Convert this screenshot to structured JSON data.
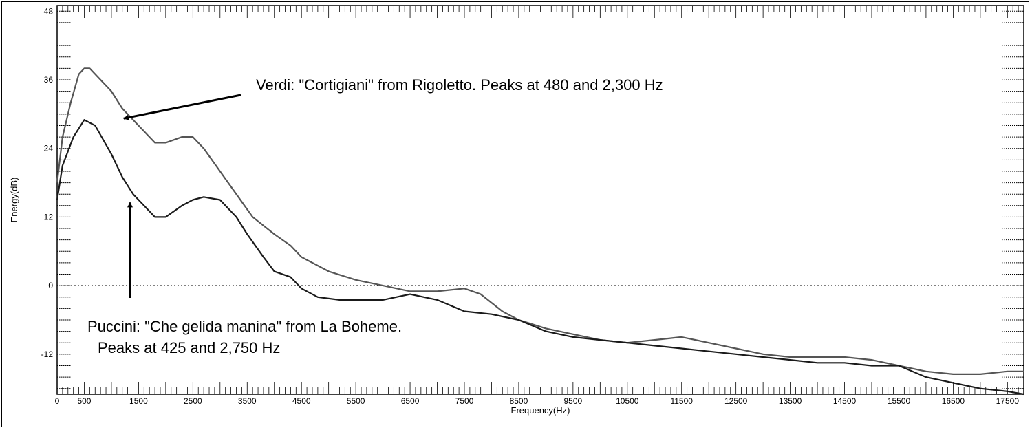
{
  "chart_data": {
    "type": "line",
    "xlabel": "Frequency(Hz)",
    "ylabel": "Energy(dB)",
    "xlim": [
      0,
      17800
    ],
    "ylim": [
      -19,
      49
    ],
    "x_ticks": [
      0,
      500,
      1500,
      2500,
      3500,
      4500,
      5500,
      6500,
      7500,
      8500,
      9500,
      10500,
      11500,
      12500,
      13500,
      14500,
      15500,
      16500,
      17500
    ],
    "x_tick_labels": [
      "0",
      "500",
      "1500",
      "2500",
      "3500",
      "4500",
      "5500",
      "6500",
      "7500",
      "8500",
      "9500",
      "10500",
      "11500",
      "12500",
      "13500",
      "14500",
      "15500",
      "16500",
      "17500"
    ],
    "y_ticks": [
      48,
      36,
      24,
      12,
      0,
      -12
    ],
    "y_tick_labels": [
      "48",
      "36",
      "24",
      "12",
      "0",
      "-12"
    ],
    "zero_line": "dotted",
    "series": [
      {
        "color": "#555555",
        "points": [
          [
            0,
            18
          ],
          [
            100,
            26
          ],
          [
            250,
            32
          ],
          [
            400,
            37
          ],
          [
            500,
            38
          ],
          [
            600,
            38
          ],
          [
            800,
            36
          ],
          [
            1000,
            34
          ],
          [
            1200,
            31
          ],
          [
            1400,
            29
          ],
          [
            1600,
            27
          ],
          [
            1800,
            25
          ],
          [
            2000,
            25
          ],
          [
            2300,
            26
          ],
          [
            2500,
            26
          ],
          [
            2700,
            24
          ],
          [
            3000,
            20
          ],
          [
            3300,
            16
          ],
          [
            3600,
            12
          ],
          [
            4000,
            9
          ],
          [
            4300,
            7
          ],
          [
            4500,
            5
          ],
          [
            5000,
            2.5
          ],
          [
            5500,
            1
          ],
          [
            6000,
            0
          ],
          [
            6500,
            -1
          ],
          [
            7000,
            -1
          ],
          [
            7500,
            -0.5
          ],
          [
            7800,
            -1.5
          ],
          [
            8200,
            -4.5
          ],
          [
            8500,
            -6
          ],
          [
            9000,
            -7.5
          ],
          [
            9500,
            -8.5
          ],
          [
            10000,
            -9.5
          ],
          [
            10500,
            -10
          ],
          [
            11000,
            -9.5
          ],
          [
            11500,
            -9
          ],
          [
            12000,
            -10
          ],
          [
            12500,
            -11
          ],
          [
            13000,
            -12
          ],
          [
            13500,
            -12.5
          ],
          [
            14000,
            -12.5
          ],
          [
            14500,
            -12.5
          ],
          [
            15000,
            -13
          ],
          [
            15500,
            -14
          ],
          [
            16000,
            -15
          ],
          [
            16500,
            -15.5
          ],
          [
            17000,
            -15.5
          ],
          [
            17500,
            -15
          ],
          [
            17800,
            -15
          ]
        ]
      },
      {
        "color": "#1a1a1a",
        "points": [
          [
            0,
            15
          ],
          [
            100,
            21
          ],
          [
            300,
            26
          ],
          [
            500,
            29
          ],
          [
            700,
            28
          ],
          [
            1000,
            23
          ],
          [
            1200,
            19
          ],
          [
            1400,
            16
          ],
          [
            1600,
            14
          ],
          [
            1800,
            12
          ],
          [
            2000,
            12
          ],
          [
            2300,
            14
          ],
          [
            2500,
            15
          ],
          [
            2700,
            15.5
          ],
          [
            3000,
            15
          ],
          [
            3300,
            12
          ],
          [
            3500,
            9
          ],
          [
            3800,
            5
          ],
          [
            4000,
            2.5
          ],
          [
            4300,
            1.5
          ],
          [
            4500,
            -0.5
          ],
          [
            4800,
            -2
          ],
          [
            5200,
            -2.5
          ],
          [
            5500,
            -2.5
          ],
          [
            6000,
            -2.5
          ],
          [
            6500,
            -1.5
          ],
          [
            7000,
            -2.5
          ],
          [
            7500,
            -4.5
          ],
          [
            8000,
            -5
          ],
          [
            8500,
            -6
          ],
          [
            9000,
            -8
          ],
          [
            9500,
            -9
          ],
          [
            10000,
            -9.5
          ],
          [
            10500,
            -10
          ],
          [
            11000,
            -10.5
          ],
          [
            11500,
            -11
          ],
          [
            12000,
            -11.5
          ],
          [
            12500,
            -12
          ],
          [
            13000,
            -12.5
          ],
          [
            13500,
            -13
          ],
          [
            14000,
            -13.5
          ],
          [
            14500,
            -13.5
          ],
          [
            15000,
            -14
          ],
          [
            15500,
            -14
          ],
          [
            16000,
            -16
          ],
          [
            16500,
            -17
          ],
          [
            17000,
            -18
          ],
          [
            17500,
            -18.5
          ],
          [
            17800,
            -19
          ]
        ]
      }
    ],
    "annotations": [
      {
        "id": "verdi",
        "lines": [
          "Verdi: \"Cortigiani\" from Rigoletto. Peaks at 480 and 2,300 Hz"
        ],
        "arrow_tip": [
          1150,
          29
        ]
      },
      {
        "id": "puccini",
        "lines": [
          "Puccini: \"Che gelida manina\" from La Boheme.",
          "Peaks at 425 and 2,750 Hz"
        ],
        "arrow_tip": [
          1300,
          16
        ]
      }
    ]
  }
}
